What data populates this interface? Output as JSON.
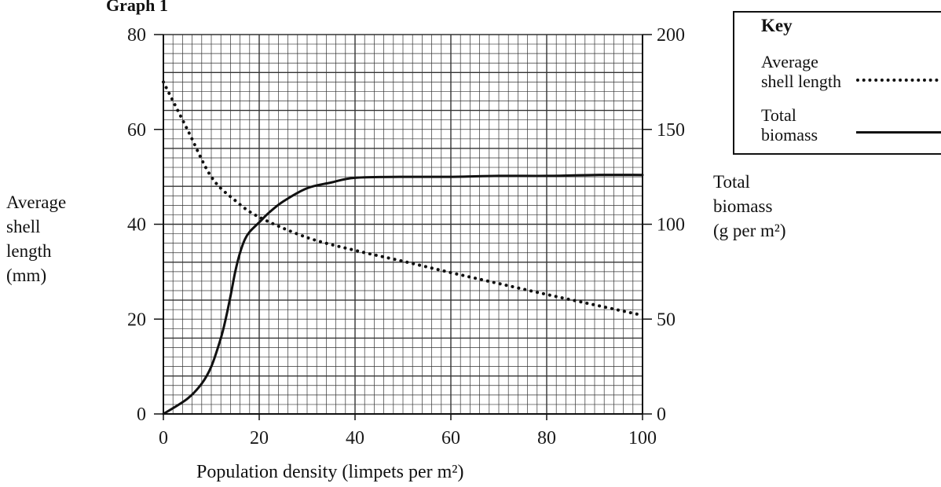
{
  "chart_data": {
    "type": "line",
    "title": "Graph 1",
    "xlabel": "Population density (limpets per m²)",
    "ylabel_left": "Average\nshell\nlength\n(mm)",
    "ylabel_right": "Total\nbiomass\n(g per m²)",
    "xlim": [
      0,
      100
    ],
    "ylim_left": [
      0,
      80
    ],
    "ylim_right": [
      0,
      200
    ],
    "x_ticks": [
      "0",
      "20",
      "40",
      "60",
      "80",
      "100"
    ],
    "y_left_ticks": [
      "0",
      "20",
      "40",
      "60",
      "80"
    ],
    "y_right_ticks": [
      "0",
      "50",
      "100",
      "150",
      "200"
    ],
    "grid": true,
    "legend": {
      "title": "Key",
      "placement": "top-right",
      "entries": [
        "Average\nshell length",
        "Total\nbiomass"
      ]
    },
    "series": [
      {
        "name": "Average shell length",
        "axis": "left",
        "style": "dotted",
        "x": [
          0,
          5,
          10,
          15,
          20,
          30,
          40,
          50,
          60,
          70,
          80,
          90,
          100
        ],
        "y": [
          70,
          60,
          50,
          45,
          41.5,
          37.2,
          34.5,
          32.2,
          29.8,
          27.5,
          25.2,
          23,
          20.8
        ]
      },
      {
        "name": "Total biomass",
        "axis": "right",
        "style": "solid",
        "x": [
          0,
          5,
          8,
          10,
          12,
          13,
          14,
          15,
          16,
          17,
          18,
          20,
          22,
          25,
          30,
          35,
          40,
          50,
          60,
          70,
          80,
          90,
          100
        ],
        "y": [
          0,
          8,
          16,
          25,
          40,
          50,
          62,
          75,
          85,
          92,
          96,
          101,
          106,
          112,
          119,
          122,
          124.5,
          125,
          125,
          125.5,
          125.5,
          126,
          126
        ]
      }
    ]
  }
}
